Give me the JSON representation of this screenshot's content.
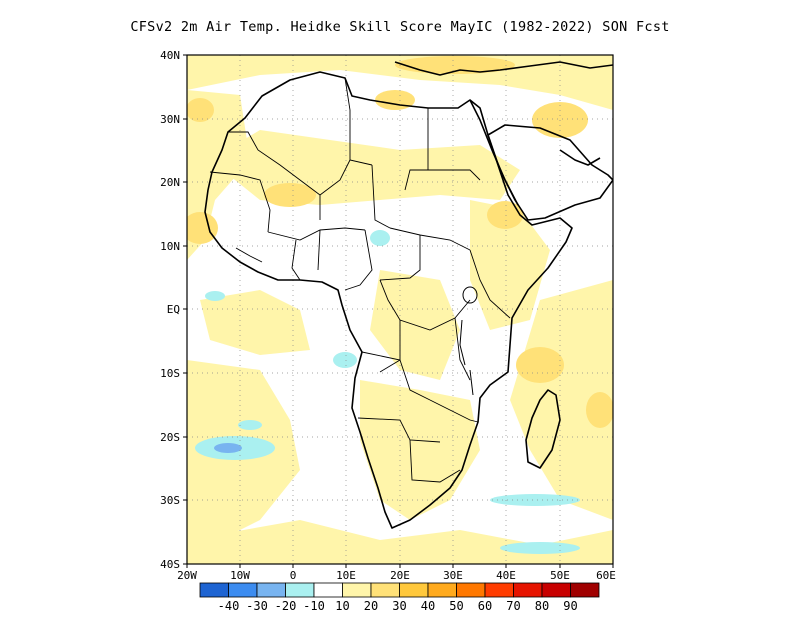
{
  "title": "CFSv2 2m Air Temp. Heidke Skill Score MayIC (1982-2022) SON Fcst",
  "map": {
    "lon_range": [
      -20,
      60
    ],
    "lat_range": [
      -40,
      40
    ],
    "lat_ticks": [
      "40N",
      "30N",
      "20N",
      "10N",
      "EQ",
      "10S",
      "20S",
      "30S",
      "40S"
    ],
    "lon_ticks": [
      "20W",
      "10W",
      "0",
      "10E",
      "20E",
      "30E",
      "40E",
      "50E",
      "60E"
    ],
    "grid": "dotted"
  },
  "colorbar": {
    "colors": [
      "#1e64d2",
      "#3c8cf0",
      "#78b4f0",
      "#aaf0f0",
      "#ffffff",
      "#fff5aa",
      "#ffe178",
      "#ffc83c",
      "#ffaa1e",
      "#ff7800",
      "#ff3c00",
      "#e61400",
      "#c80000",
      "#a00000"
    ],
    "labels": [
      "-40",
      "-30",
      "-20",
      "-10",
      "10",
      "20",
      "30",
      "40",
      "50",
      "60",
      "70",
      "80",
      "90"
    ]
  }
}
